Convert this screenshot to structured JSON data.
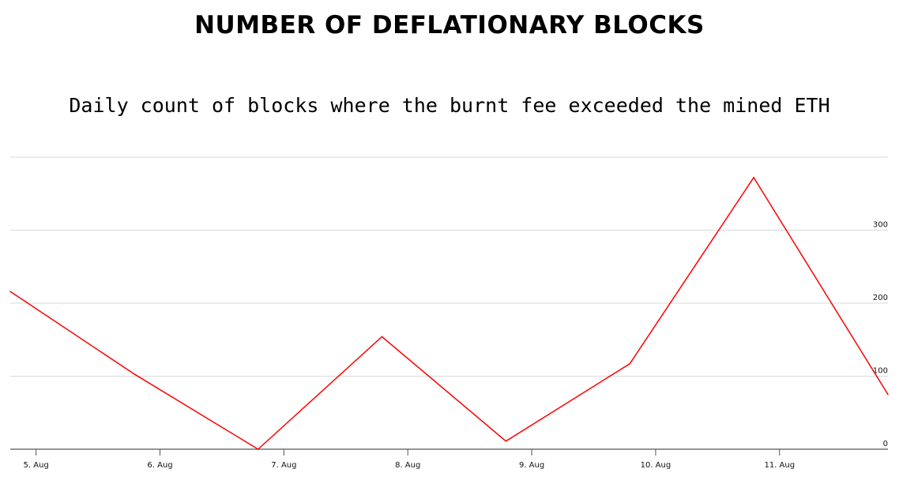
{
  "chart_data": {
    "type": "line",
    "title": "NUMBER OF DEFLATIONARY BLOCKS",
    "subtitle": "Daily count of blocks where the burnt fee exceeded the mined ETH",
    "xlabel": "",
    "ylabel": "",
    "x_ticks": [
      "5. Aug",
      "6. Aug",
      "7. Aug",
      "8. Aug",
      "9. Aug",
      "10. Aug",
      "11. Aug"
    ],
    "y_ticks": [
      0,
      100,
      200,
      300
    ],
    "xlim": [
      "2021-08-04T19:00",
      "2021-08-11T21:00"
    ],
    "ylim": [
      0,
      400
    ],
    "grid": true,
    "series": [
      {
        "color": "#ff0000",
        "x": [
          "2021-08-04T19:00",
          "2021-08-05T19:00",
          "2021-08-06T19:00",
          "2021-08-07T19:00",
          "2021-08-08T19:00",
          "2021-08-09T19:00",
          "2021-08-10T19:00",
          "2021-08-11T21:00"
        ],
        "values": [
          216,
          103,
          0,
          154,
          11,
          117,
          372,
          75
        ]
      }
    ]
  }
}
